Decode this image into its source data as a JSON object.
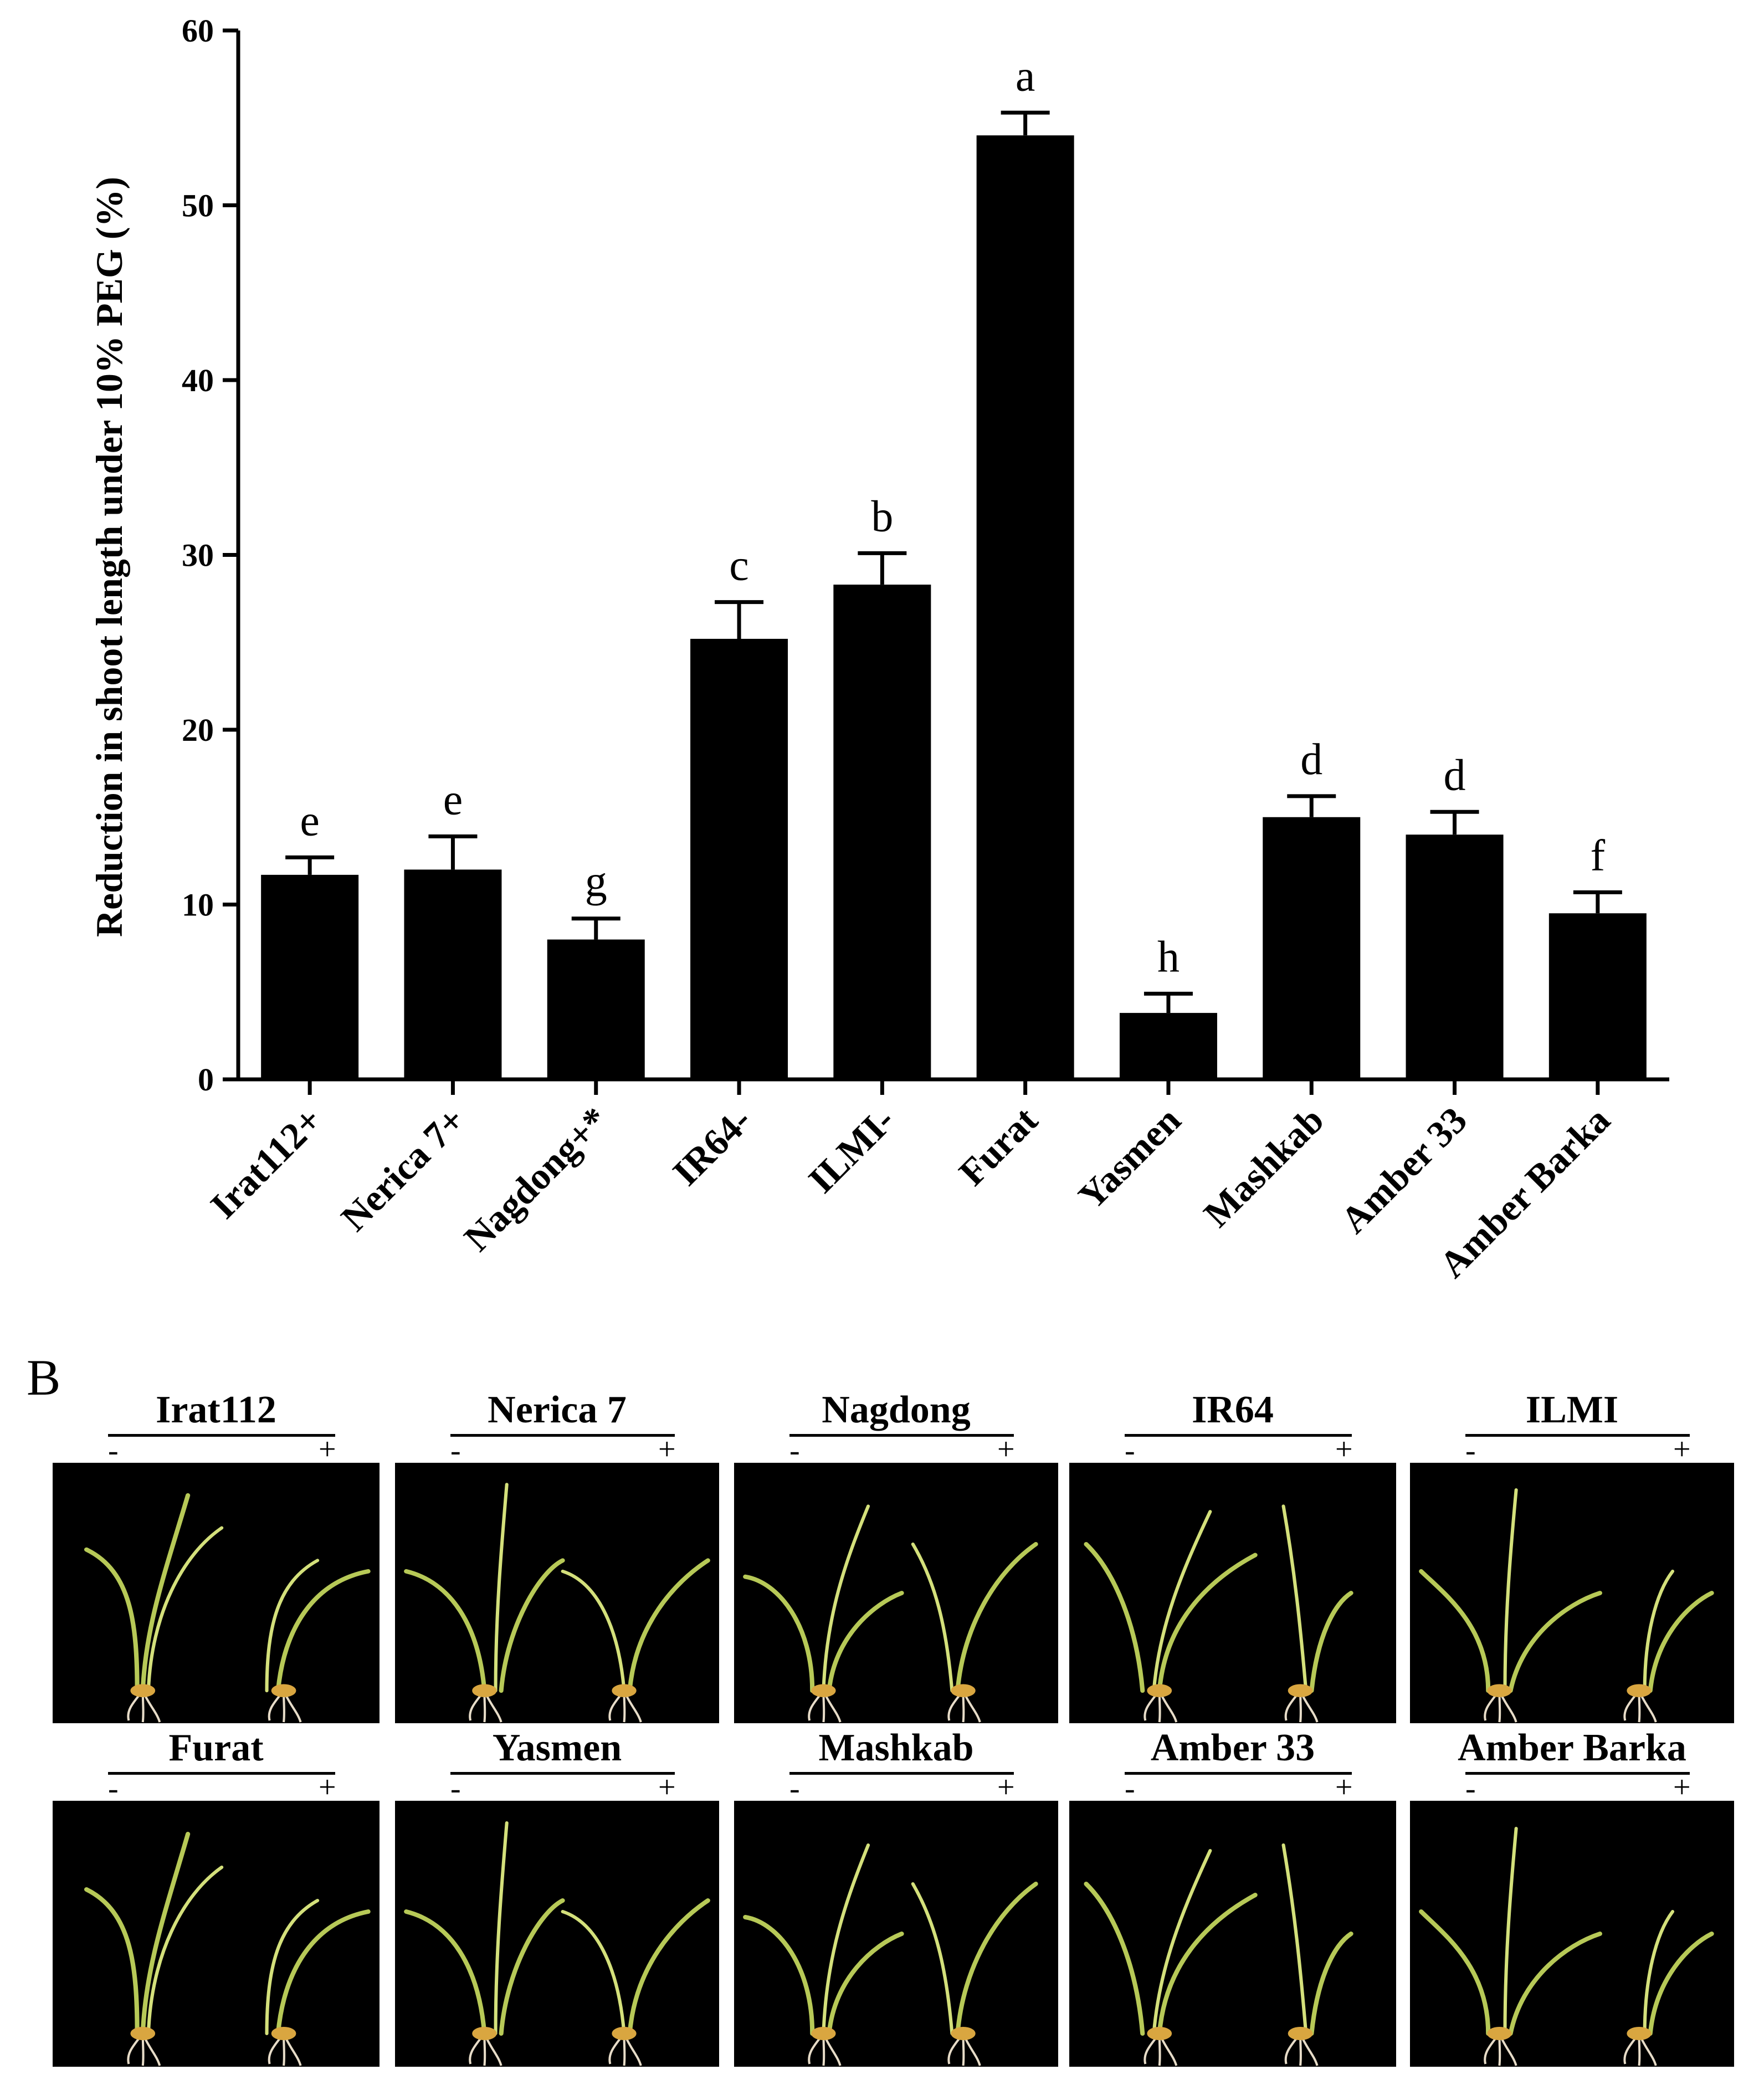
{
  "chart_data": {
    "type": "bar",
    "categories": [
      "Irat112+",
      "Nerica 7+",
      "Nagdong+*",
      "IR64-",
      "ILMI-",
      "Furat",
      "Yasmen",
      "Mashkab",
      "Amber 33",
      "Amber Barka"
    ],
    "values": [
      11.7,
      12.0,
      8.0,
      25.2,
      28.3,
      54.0,
      3.8,
      15.0,
      14.0,
      9.5
    ],
    "errors": [
      1.0,
      1.9,
      1.2,
      2.1,
      1.8,
      1.3,
      1.1,
      1.2,
      1.3,
      1.2
    ],
    "significance_letters": [
      "e",
      "e",
      "g",
      "c",
      "b",
      "a",
      "h",
      "d",
      "d",
      "f"
    ],
    "ylabel": "Reduction  in shoot length under 10% PEG (%)",
    "ylim": [
      0,
      60
    ],
    "yticks": [
      "0",
      "10",
      "20",
      "30",
      "40",
      "50",
      "60"
    ],
    "grid": false,
    "bar_color": "#000000"
  },
  "panel_b": {
    "label": "B",
    "minus_sign": "-",
    "plus_sign": "+",
    "photos": [
      {
        "title": "Irat112"
      },
      {
        "title": "Nerica 7"
      },
      {
        "title": "Nagdong"
      },
      {
        "title": "IR64"
      },
      {
        "title": "ILMI"
      },
      {
        "title": "Furat"
      },
      {
        "title": "Yasmen"
      },
      {
        "title": "Mashkab"
      },
      {
        "title": "Amber 33"
      },
      {
        "title": "Amber Barka"
      }
    ]
  }
}
